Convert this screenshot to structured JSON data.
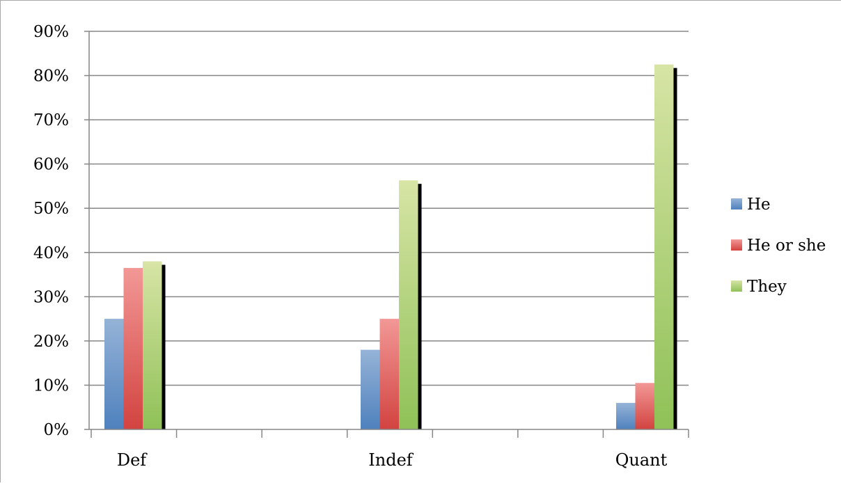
{
  "chart_data": {
    "type": "bar",
    "categories": [
      "Def",
      "Indef",
      "Quant"
    ],
    "series": [
      {
        "name": "He",
        "values": [
          25,
          18,
          6
        ]
      },
      {
        "name": "He or she",
        "values": [
          36.5,
          25,
          10.5
        ]
      },
      {
        "name": "They",
        "values": [
          38,
          56.3,
          82.5
        ]
      }
    ],
    "title": "",
    "xlabel": "",
    "ylabel": "",
    "ylim": [
      0,
      90
    ],
    "y_ticks": [
      "0%",
      "10%",
      "20%",
      "30%",
      "40%",
      "50%",
      "60%",
      "70%",
      "80%",
      "90%"
    ],
    "grid": true,
    "legend_position": "right",
    "colors": {
      "He": [
        "#95b3d7",
        "#4f81bd"
      ],
      "He or she": [
        "#f29896",
        "#d24340"
      ],
      "They": [
        "#d7e4a5",
        "#8fc157"
      ]
    }
  }
}
